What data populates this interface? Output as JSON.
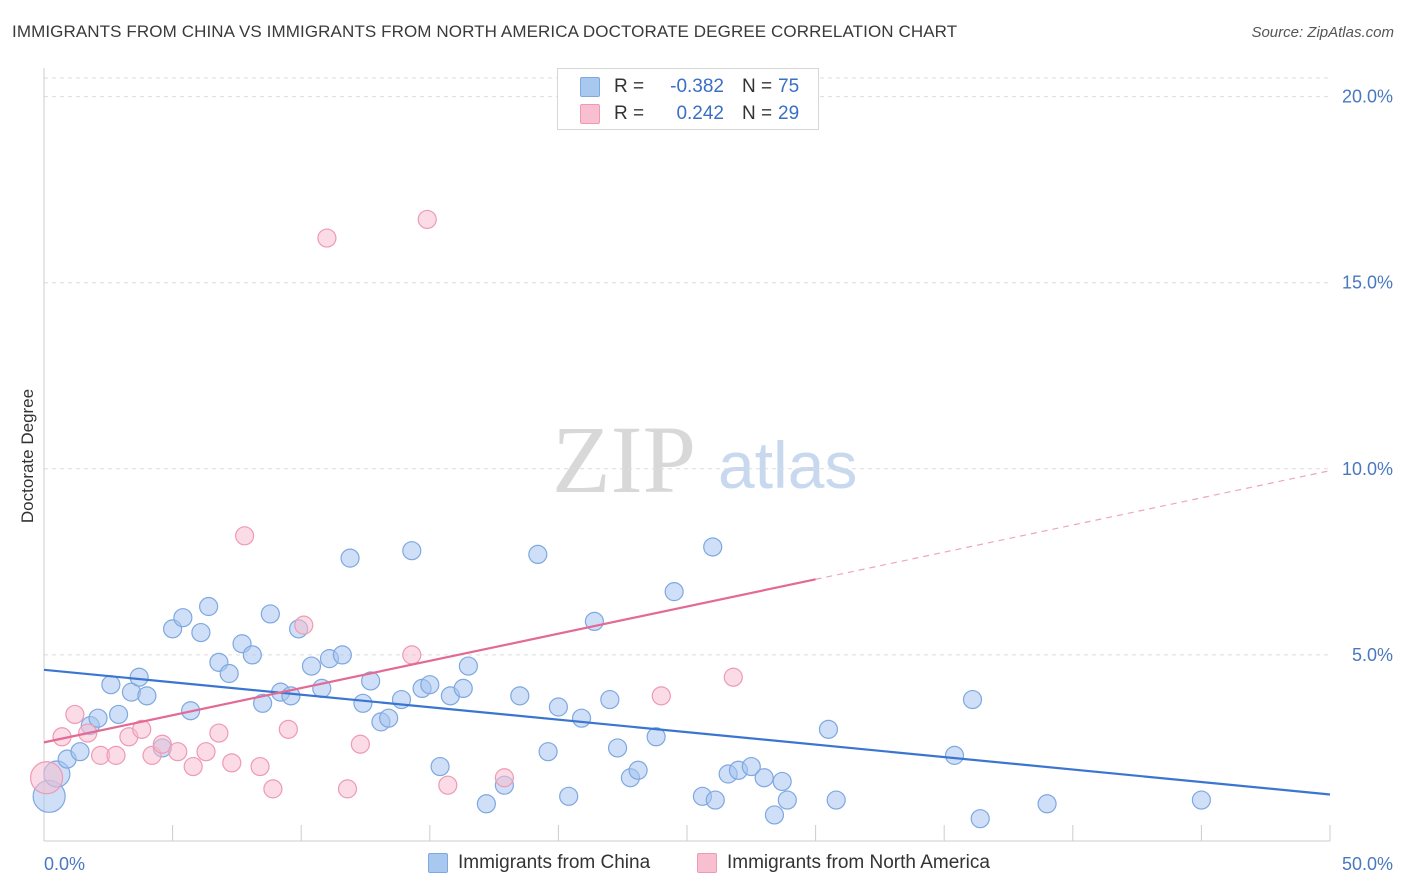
{
  "header": {
    "title": "IMMIGRANTS FROM CHINA VS IMMIGRANTS FROM NORTH AMERICA DOCTORATE DEGREE CORRELATION CHART",
    "source": "Source: ZipAtlas.com"
  },
  "watermark": {
    "zip": "ZIP",
    "atlas": "atlas"
  },
  "legend": {
    "rows": [
      {
        "r_label": "R =",
        "r_value": "-0.382",
        "n_label": "N =",
        "n_value": "75",
        "color": "#a9c8f0",
        "border": "#7ea8e0"
      },
      {
        "r_label": "R =",
        "r_value": "0.242",
        "n_label": "N =",
        "n_value": "29",
        "color": "#f8bfd0",
        "border": "#ee9ab3"
      }
    ]
  },
  "colors": {
    "china_fill": "rgba(165,197,240,0.55)",
    "china_stroke": "#7ea8e0",
    "china_line": "#3a76d0",
    "na_fill": "rgba(248,190,208,0.55)",
    "na_stroke": "#ee9ab3",
    "na_line": "#e26a94",
    "grid": "#dcdcdc",
    "axis": "#cccccc"
  },
  "chart_data": {
    "type": "scatter",
    "title": "IMMIGRANTS FROM CHINA VS IMMIGRANTS FROM NORTH AMERICA DOCTORATE DEGREE CORRELATION CHART",
    "xlabel": "",
    "ylabel": "Doctorate Degree",
    "xlim": [
      0,
      50
    ],
    "ylim": [
      0,
      20.5
    ],
    "x_tick_labels": {
      "min": "0.0%",
      "max": "50.0%"
    },
    "y_ticks": [
      {
        "value": 5,
        "label": "5.0%"
      },
      {
        "value": 10,
        "label": "10.0%"
      },
      {
        "value": 15,
        "label": "15.0%"
      },
      {
        "value": 20,
        "label": "20.0%"
      }
    ],
    "grid": true,
    "legend_position": "top-center",
    "series": [
      {
        "name": "Immigrants from China",
        "r": -0.382,
        "n": 75,
        "trend": {
          "x0": 0,
          "y0": 4.6,
          "x1": 50,
          "y1": 1.25,
          "solid_until": 50
        },
        "points": [
          [
            0.2,
            1.2,
            16
          ],
          [
            0.5,
            1.8,
            13
          ],
          [
            0.9,
            2.2,
            9
          ],
          [
            1.4,
            2.4,
            9
          ],
          [
            1.8,
            3.1,
            9
          ],
          [
            2.1,
            3.3,
            9
          ],
          [
            2.6,
            4.2,
            9
          ],
          [
            2.9,
            3.4,
            9
          ],
          [
            3.4,
            4.0,
            9
          ],
          [
            3.7,
            4.4,
            9
          ],
          [
            4.0,
            3.9,
            9
          ],
          [
            4.6,
            2.5,
            9
          ],
          [
            5.0,
            5.7,
            9
          ],
          [
            5.4,
            6.0,
            9
          ],
          [
            5.7,
            3.5,
            9
          ],
          [
            6.1,
            5.6,
            9
          ],
          [
            6.4,
            6.3,
            9
          ],
          [
            6.8,
            4.8,
            9
          ],
          [
            7.2,
            4.5,
            9
          ],
          [
            7.7,
            5.3,
            9
          ],
          [
            8.1,
            5.0,
            9
          ],
          [
            8.5,
            3.7,
            9
          ],
          [
            8.8,
            6.1,
            9
          ],
          [
            9.2,
            4.0,
            9
          ],
          [
            9.6,
            3.9,
            9
          ],
          [
            9.9,
            5.7,
            9
          ],
          [
            10.4,
            4.7,
            9
          ],
          [
            10.8,
            4.1,
            9
          ],
          [
            11.1,
            4.9,
            9
          ],
          [
            11.6,
            5.0,
            9
          ],
          [
            11.9,
            7.6,
            9
          ],
          [
            12.4,
            3.7,
            9
          ],
          [
            12.7,
            4.3,
            9
          ],
          [
            13.1,
            3.2,
            9
          ],
          [
            13.4,
            3.3,
            9
          ],
          [
            13.9,
            3.8,
            9
          ],
          [
            14.3,
            7.8,
            9
          ],
          [
            14.7,
            4.1,
            9
          ],
          [
            15.0,
            4.2,
            9
          ],
          [
            15.4,
            2.0,
            9
          ],
          [
            15.8,
            3.9,
            9
          ],
          [
            16.3,
            4.1,
            9
          ],
          [
            16.5,
            4.7,
            9
          ],
          [
            17.2,
            1.0,
            9
          ],
          [
            17.9,
            1.5,
            9
          ],
          [
            18.5,
            3.9,
            9
          ],
          [
            19.2,
            7.7,
            9
          ],
          [
            19.6,
            2.4,
            9
          ],
          [
            20.0,
            3.6,
            9
          ],
          [
            20.4,
            1.2,
            9
          ],
          [
            20.9,
            3.3,
            9
          ],
          [
            21.4,
            5.9,
            9
          ],
          [
            22.0,
            3.8,
            9
          ],
          [
            22.3,
            2.5,
            9
          ],
          [
            22.8,
            1.7,
            9
          ],
          [
            23.1,
            1.9,
            9
          ],
          [
            23.8,
            2.8,
            9
          ],
          [
            24.5,
            6.7,
            9
          ],
          [
            25.6,
            1.2,
            9
          ],
          [
            26.0,
            7.9,
            9
          ],
          [
            26.1,
            1.1,
            9
          ],
          [
            26.6,
            1.8,
            9
          ],
          [
            27.0,
            1.9,
            9
          ],
          [
            27.5,
            2.0,
            9
          ],
          [
            28.0,
            1.7,
            9
          ],
          [
            28.4,
            0.7,
            9
          ],
          [
            28.7,
            1.6,
            9
          ],
          [
            28.9,
            1.1,
            9
          ],
          [
            30.5,
            3.0,
            9
          ],
          [
            30.8,
            1.1,
            9
          ],
          [
            35.4,
            2.3,
            9
          ],
          [
            36.1,
            3.8,
            9
          ],
          [
            36.4,
            0.6,
            9
          ],
          [
            39.0,
            1.0,
            9
          ],
          [
            45.0,
            1.1,
            9
          ]
        ]
      },
      {
        "name": "Immigrants from North America",
        "r": 0.242,
        "n": 29,
        "trend": {
          "x0": 0,
          "y0": 2.65,
          "x1": 50,
          "y1": 9.95,
          "solid_until": 30
        },
        "points": [
          [
            0.1,
            1.7,
            16
          ],
          [
            0.7,
            2.8,
            9
          ],
          [
            1.2,
            3.4,
            9
          ],
          [
            1.7,
            2.9,
            9
          ],
          [
            2.2,
            2.3,
            9
          ],
          [
            2.8,
            2.3,
            9
          ],
          [
            3.3,
            2.8,
            9
          ],
          [
            3.8,
            3.0,
            9
          ],
          [
            4.2,
            2.3,
            9
          ],
          [
            4.6,
            2.6,
            9
          ],
          [
            5.2,
            2.4,
            9
          ],
          [
            5.8,
            2.0,
            9
          ],
          [
            6.3,
            2.4,
            9
          ],
          [
            6.8,
            2.9,
            9
          ],
          [
            7.3,
            2.1,
            9
          ],
          [
            7.8,
            8.2,
            9
          ],
          [
            8.4,
            2.0,
            9
          ],
          [
            8.9,
            1.4,
            9
          ],
          [
            9.5,
            3.0,
            9
          ],
          [
            10.1,
            5.8,
            9
          ],
          [
            11.0,
            16.2,
            9
          ],
          [
            11.8,
            1.4,
            9
          ],
          [
            12.3,
            2.6,
            9
          ],
          [
            14.3,
            5.0,
            9
          ],
          [
            14.9,
            16.7,
            9
          ],
          [
            15.7,
            1.5,
            9
          ],
          [
            17.9,
            1.7,
            9
          ],
          [
            24.0,
            3.9,
            9
          ],
          [
            26.8,
            4.4,
            9
          ]
        ]
      }
    ]
  },
  "bottom_legend": {
    "china_label": "Immigrants from China",
    "na_label": "Immigrants from North America"
  }
}
